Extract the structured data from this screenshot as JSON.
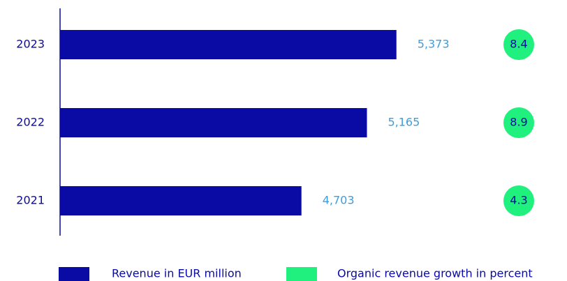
{
  "chart_data": {
    "type": "bar",
    "orientation": "horizontal",
    "categories": [
      "2023",
      "2022",
      "2021"
    ],
    "xlim": [
      3000,
      6000
    ],
    "series": [
      {
        "name": "Revenue in EUR million",
        "color": "#0a0aa5",
        "values": [
          5373,
          5165,
          4703
        ],
        "value_labels": [
          "5,373",
          "5,165",
          "4,703"
        ],
        "label_color": "#3a9ee0"
      },
      {
        "name": "Organic revenue growth in percent",
        "color": "#1ff07e",
        "values": [
          8.4,
          8.9,
          4.3
        ]
      }
    ]
  }
}
